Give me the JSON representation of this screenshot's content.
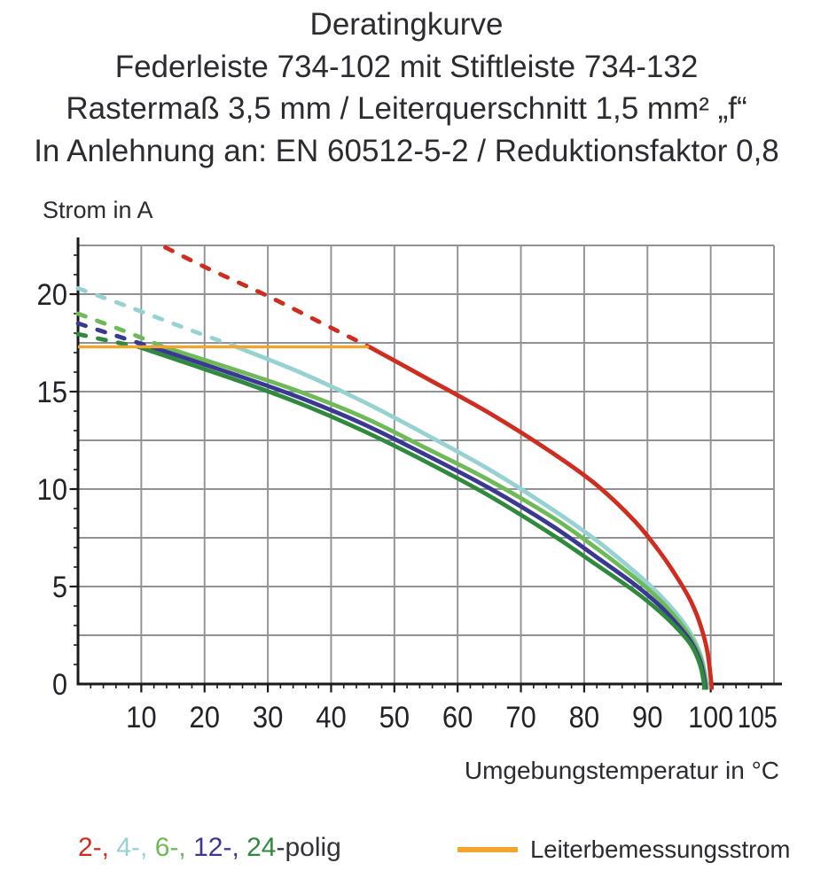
{
  "header": {
    "line1": "Deratingkurve",
    "line2": "Federleiste 734-102 mit Stiftleiste 734-132",
    "line3": "Rastermaß 3,5 mm / Leiterquerschnitt 1,5 mm² „f“",
    "line4": "In Anlehnung an: EN 60512-5-2 / Reduktionsfaktor 0,8"
  },
  "chart_data": {
    "type": "line",
    "title": "Deratingkurve",
    "xlabel": "Umgebungstemperatur in °C",
    "ylabel": "Strom in A",
    "xlim": [
      0,
      110
    ],
    "ylim": [
      0,
      22.5
    ],
    "x_major_ticks": [
      10,
      20,
      30,
      40,
      50,
      60,
      70,
      80,
      90,
      100,
      105
    ],
    "x_minor_step": 2,
    "y_major_ticks": [
      0,
      5,
      10,
      15,
      20
    ],
    "y_grid_step": 2.5,
    "y_minor_step": 1,
    "grid_color": "#919195",
    "axis_color": "#1a1a1a",
    "series": [
      {
        "name": "2-polig",
        "color": "#cf2d20",
        "dashed": [
          [
            13.8,
            22.4
          ],
          [
            20,
            21.4
          ],
          [
            30,
            19.9
          ],
          [
            38,
            18.6
          ],
          [
            46,
            17.3
          ]
        ],
        "solid": [
          [
            46,
            17.3
          ],
          [
            55,
            15.7
          ],
          [
            65,
            13.9
          ],
          [
            75,
            11.85
          ],
          [
            82,
            10.2
          ],
          [
            88,
            8.35
          ],
          [
            92,
            6.75
          ],
          [
            95,
            5.3
          ],
          [
            97,
            4.15
          ],
          [
            98.5,
            2.9
          ],
          [
            99.5,
            1.6
          ],
          [
            100.1,
            0
          ]
        ]
      },
      {
        "name": "4-polig",
        "color": "#97d2d3",
        "dashed": [
          [
            0,
            20.3
          ],
          [
            8,
            19.35
          ],
          [
            17,
            18.25
          ],
          [
            25,
            17.3
          ]
        ],
        "solid": [
          [
            25,
            17.3
          ],
          [
            35,
            16.0
          ],
          [
            45,
            14.5
          ],
          [
            55,
            12.8
          ],
          [
            65,
            11.0
          ],
          [
            75,
            8.95
          ],
          [
            82,
            7.35
          ],
          [
            88,
            5.75
          ],
          [
            92,
            4.55
          ],
          [
            95,
            3.45
          ],
          [
            97,
            2.5
          ],
          [
            98.5,
            1.4
          ],
          [
            99.4,
            0
          ]
        ]
      },
      {
        "name": "6-polig",
        "color": "#6fba58",
        "dashed": [
          [
            0,
            19.0
          ],
          [
            7,
            18.15
          ],
          [
            13.5,
            17.3
          ]
        ],
        "solid": [
          [
            13.5,
            17.3
          ],
          [
            25,
            16.1
          ],
          [
            35,
            15.0
          ],
          [
            45,
            13.7
          ],
          [
            55,
            12.1
          ],
          [
            65,
            10.45
          ],
          [
            75,
            8.55
          ],
          [
            82,
            6.95
          ],
          [
            88,
            5.45
          ],
          [
            92,
            4.3
          ],
          [
            95,
            3.2
          ],
          [
            97,
            2.3
          ],
          [
            98.5,
            1.25
          ],
          [
            99.25,
            0
          ]
        ]
      },
      {
        "name": "12-polig",
        "color": "#3b3894",
        "dashed": [
          [
            0,
            18.5
          ],
          [
            6,
            17.87
          ],
          [
            11.5,
            17.3
          ]
        ],
        "solid": [
          [
            11.5,
            17.3
          ],
          [
            25,
            15.85
          ],
          [
            35,
            14.7
          ],
          [
            45,
            13.35
          ],
          [
            55,
            11.75
          ],
          [
            65,
            10.05
          ],
          [
            75,
            8.1
          ],
          [
            82,
            6.5
          ],
          [
            88,
            5.1
          ],
          [
            92,
            4.0
          ],
          [
            95,
            2.95
          ],
          [
            97,
            2.1
          ],
          [
            98.4,
            1.1
          ],
          [
            99.1,
            0
          ]
        ]
      },
      {
        "name": "24-polig",
        "color": "#2f8a3e",
        "dashed": [
          [
            0,
            17.95
          ],
          [
            5,
            17.6
          ],
          [
            9.5,
            17.3
          ]
        ],
        "solid": [
          [
            9.5,
            17.3
          ],
          [
            25,
            15.6
          ],
          [
            35,
            14.4
          ],
          [
            45,
            13.0
          ],
          [
            55,
            11.4
          ],
          [
            65,
            9.65
          ],
          [
            75,
            7.65
          ],
          [
            82,
            6.1
          ],
          [
            88,
            4.75
          ],
          [
            92,
            3.7
          ],
          [
            95,
            2.75
          ],
          [
            97,
            1.95
          ],
          [
            98.3,
            1.0
          ],
          [
            98.95,
            0
          ]
        ]
      }
    ],
    "rated_line": {
      "label": "Leiterbemessungsstrom",
      "current": 17.3,
      "x_start": 0,
      "x_end": 46,
      "color": "#f2a42d"
    }
  },
  "legend": {
    "series_items": [
      {
        "text": "2-, ",
        "color": "#cf2d20"
      },
      {
        "text": "4-, ",
        "color": "#97d2d3"
      },
      {
        "text": "6-, ",
        "color": "#6fba58"
      },
      {
        "text": "12-, ",
        "color": "#3b3894"
      },
      {
        "text": "24",
        "color": "#2f8a3e"
      },
      {
        "text": "-polig",
        "color": "#32323c"
      }
    ]
  }
}
